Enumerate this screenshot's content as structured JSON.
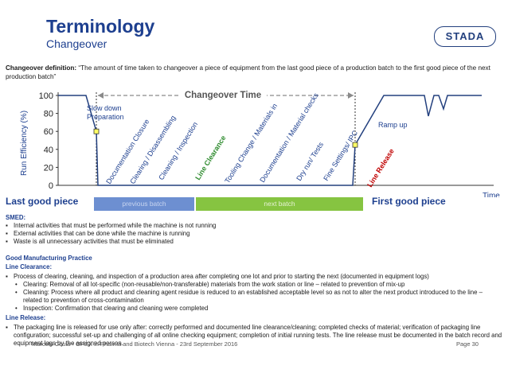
{
  "header": {
    "title": "Terminology",
    "subtitle": "Changeover",
    "logo": "STADA"
  },
  "definition": {
    "label": "Changeover definition:",
    "text": " “The amount of time taken to changeover a piece of equipment from the last good piece of a production batch to the first good piece of the next production batch”"
  },
  "chart_data": {
    "type": "line",
    "ylabel": "Run Efficiency (%)",
    "xlabel": "Time",
    "yticks": [
      "0",
      "20",
      "40",
      "60",
      "80",
      "100"
    ],
    "ylim": [
      0,
      100
    ],
    "annotations": {
      "slow_down": "Slow down Preparation",
      "changeover_time": "Changeover Time",
      "ramp_up": "Ramp up"
    },
    "steps": [
      {
        "label": "Documentation Closure",
        "color": "#1d3f8f"
      },
      {
        "label": "Clearing / Disassembling",
        "color": "#1d3f8f"
      },
      {
        "label": "Cleaning / Inspection",
        "color": "#1d3f8f"
      },
      {
        "label": "Line Clearance",
        "color": "#2e8b2e"
      },
      {
        "label": "Tooling Change / Materials in",
        "color": "#1d3f8f"
      },
      {
        "label": "Documentation / Material checks",
        "color": "#1d3f8f"
      },
      {
        "label": "Dry run/ Tests",
        "color": "#1d3f8f"
      },
      {
        "label": "Fine Settings/ IPC",
        "color": "#1d3f8f"
      },
      {
        "label": "Line Release",
        "color": "#c00000"
      }
    ],
    "line_points": [
      {
        "t": 0.0,
        "y": 100
      },
      {
        "t": 0.17,
        "y": 100
      },
      {
        "t": 0.21,
        "y": 35
      },
      {
        "t": 0.24,
        "y": 0
      },
      {
        "t": 0.69,
        "y": 0
      },
      {
        "t": 0.74,
        "y": 40
      },
      {
        "t": 0.79,
        "y": 100
      },
      {
        "t": 0.86,
        "y": 100
      },
      {
        "t": 0.88,
        "y": 77
      },
      {
        "t": 0.89,
        "y": 100
      },
      {
        "t": 0.905,
        "y": 100
      },
      {
        "t": 0.925,
        "y": 83
      },
      {
        "t": 0.94,
        "y": 100
      },
      {
        "t": 1.0,
        "y": 100
      }
    ]
  },
  "timeline": {
    "last_good": "Last good piece",
    "first_good": "First good piece",
    "previous_batch": "previous batch",
    "next_batch": "next batch"
  },
  "smed": {
    "heading": "SMED:",
    "items": [
      "Internal activities that must be performed while the machine is not running",
      "External activities that can be done while the machine is running",
      "Waste is all unnecessary activities that must be eliminated"
    ]
  },
  "gmp": {
    "heading": "Good Manufacturing Practice",
    "line_clearance_heading": "Line Clearance:",
    "line_clearance_item": "Process of clearing, cleaning, and inspection of a production area after completing one lot and prior to starting the next (documented in equipment logs)",
    "sub_items": [
      "Clearing: Removal of all lot-specific (non-reusable/non-transferable) materials from the work station or line – related to prevention of mix-up",
      "Cleaning: Process where all product and cleaning agent residue is reduced to an established acceptable level so as not to alter the next product introduced to the line – related to prevention of cross-contamination",
      "Inspection: Confirmation that clearing and cleaning were completed"
    ],
    "line_release_heading": "Line Release:",
    "line_release_item": "The packaging line is released for use only after: correctly performed and documented line clearance/cleaning; completed checks of material; verification of packaging line configuration; successful set-up and challenging of all online checking equipment; completion of initial running tests. The line release must be documented in the batch record and equipment logs by the assigned person."
  },
  "footer": {
    "text": "Marcelo Costa - OPEX in Pharma and Biotech Vienna - 23rd September 2016",
    "page": "Page 30"
  }
}
